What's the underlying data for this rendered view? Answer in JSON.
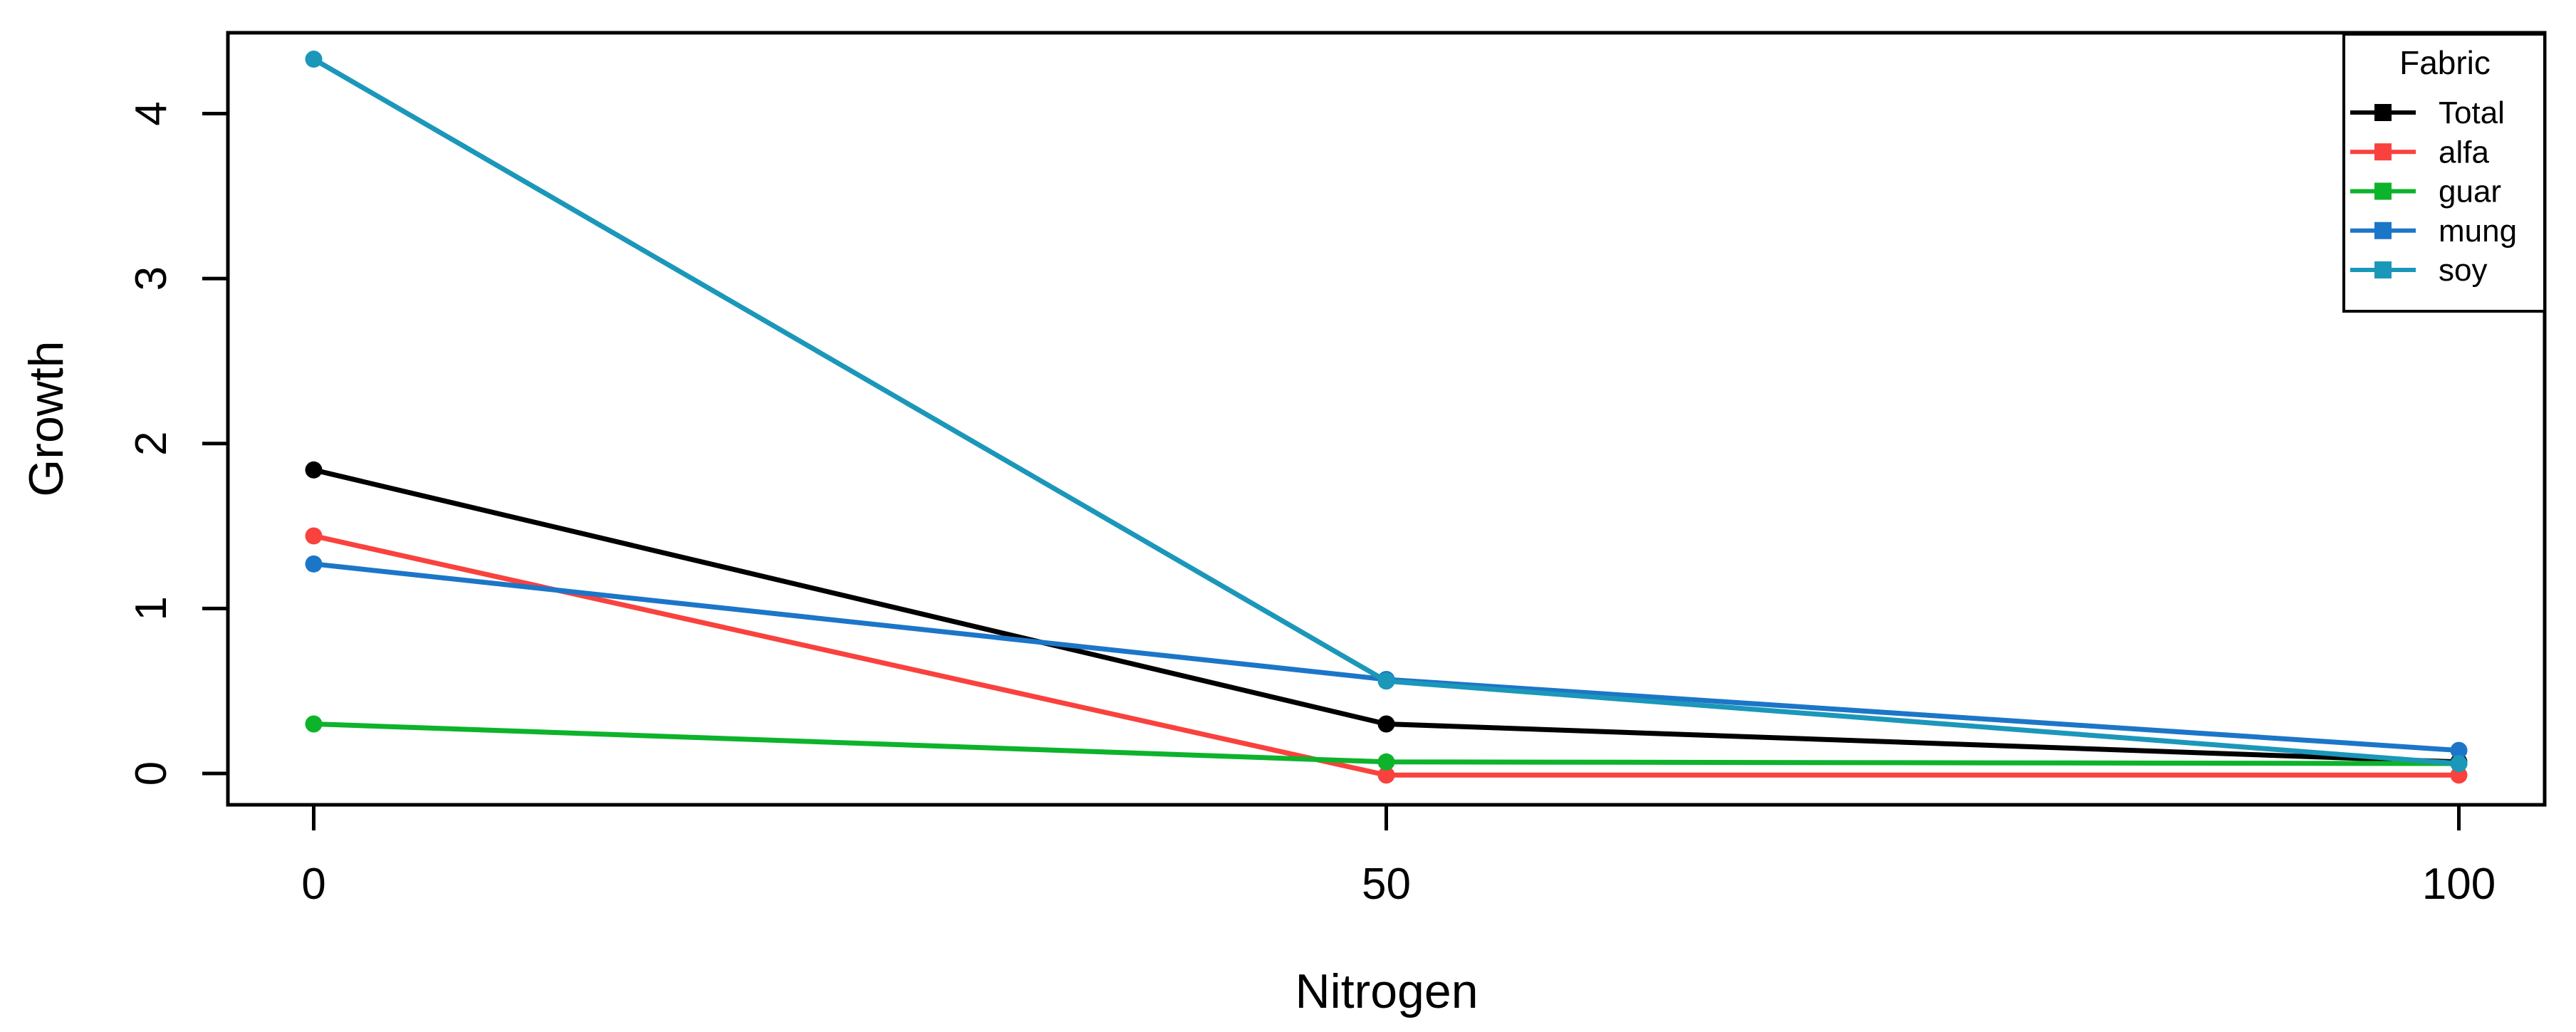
{
  "chart_data": {
    "type": "line",
    "title": "",
    "xlabel": "Nitrogen",
    "ylabel": "Growth",
    "x": [
      0,
      50,
      100
    ],
    "x_ticks": [
      "0",
      "50",
      "100"
    ],
    "y_ticks": [
      "0",
      "1",
      "2",
      "3",
      "4"
    ],
    "xlim": [
      -4,
      104
    ],
    "ylim": [
      -0.19,
      4.49
    ],
    "grid": false,
    "marker": "circle",
    "legend": {
      "title": "Fabric",
      "position": "top-right",
      "entries": [
        "Total",
        "alfa",
        "guar",
        "mung",
        "soy"
      ]
    },
    "series": [
      {
        "name": "Total",
        "color": "#000000",
        "values": [
          1.84,
          0.3,
          0.07
        ]
      },
      {
        "name": "alfa",
        "color": "#F9423E",
        "values": [
          1.44,
          -0.01,
          -0.01
        ]
      },
      {
        "name": "guar",
        "color": "#0DB32B",
        "values": [
          0.3,
          0.07,
          0.06
        ]
      },
      {
        "name": "mung",
        "color": "#1C76C8",
        "values": [
          1.27,
          0.57,
          0.14
        ]
      },
      {
        "name": "soy",
        "color": "#1B97BA",
        "values": [
          4.33,
          0.56,
          0.06
        ]
      }
    ],
    "colors": {
      "axis": "#000000",
      "background": "#ffffff"
    }
  }
}
